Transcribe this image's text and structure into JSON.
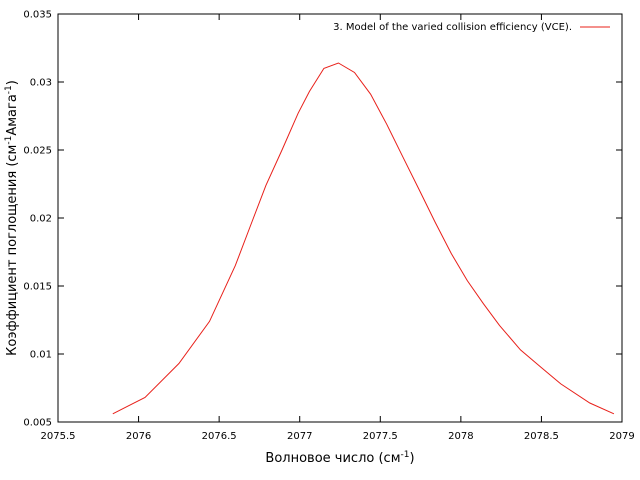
{
  "chart_data": {
    "type": "line",
    "xlabel_main": "Волновое число (см",
    "xlabel_sup": "-1",
    "xlabel_end": ")",
    "ylabel_main": "Коэффициент поглощения (см",
    "ylabel_sup1": "-1",
    "ylabel_mid": "Амага",
    "ylabel_sup2": "-1",
    "ylabel_end": ")",
    "xlim": [
      2075.5,
      2079
    ],
    "ylim": [
      0.005,
      0.035
    ],
    "xticks": [
      2075.5,
      2076,
      2076.5,
      2077,
      2077.5,
      2078,
      2078.5,
      2079
    ],
    "yticks": [
      0.005,
      0.01,
      0.015,
      0.02,
      0.025,
      0.03,
      0.035
    ],
    "legend_position": "top-right",
    "series": [
      {
        "name": "3. Model of the varied collision efficiency (VCE).",
        "color": "#e8201a",
        "x": [
          2075.84,
          2076.04,
          2076.25,
          2076.44,
          2076.6,
          2076.69,
          2076.79,
          2076.89,
          2076.99,
          2077.06,
          2077.15,
          2077.24,
          2077.34,
          2077.44,
          2077.54,
          2077.64,
          2077.74,
          2077.84,
          2077.94,
          2078.04,
          2078.14,
          2078.24,
          2078.37,
          2078.5,
          2078.62,
          2078.8,
          2078.95
        ],
        "y": [
          0.0056,
          0.0068,
          0.0093,
          0.0124,
          0.0165,
          0.0193,
          0.0224,
          0.025,
          0.0277,
          0.0293,
          0.031,
          0.0314,
          0.0307,
          0.0291,
          0.0269,
          0.0245,
          0.0221,
          0.0197,
          0.0174,
          0.0154,
          0.0137,
          0.0121,
          0.0103,
          0.009,
          0.0078,
          0.0064,
          0.0056
        ]
      }
    ]
  }
}
